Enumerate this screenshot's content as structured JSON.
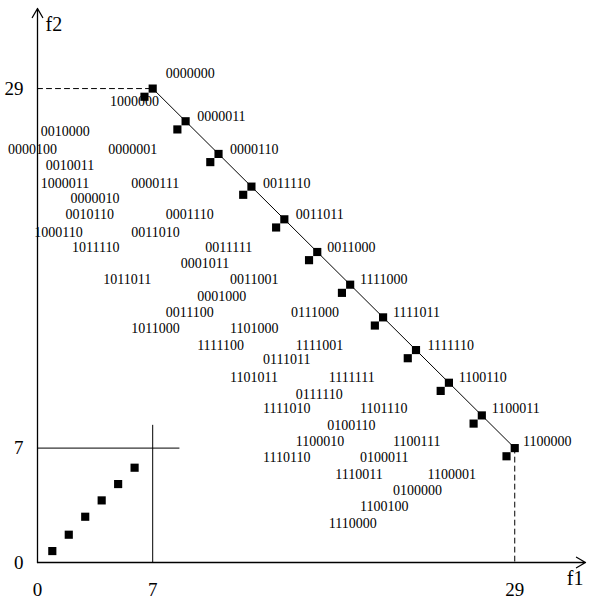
{
  "chart_data": {
    "type": "scatter",
    "x_label": "f1",
    "y_label": "f2",
    "xlim": [
      0,
      33.3
    ],
    "ylim": [
      0,
      33.9
    ],
    "xticks": [
      0,
      7,
      29
    ],
    "yticks": [
      0,
      7,
      29
    ],
    "series": [
      {
        "color": "#000000",
        "marker": "square",
        "x": [
          7,
          9,
          11,
          13,
          15,
          17,
          19,
          21,
          23,
          25,
          27,
          29
        ],
        "y": [
          29,
          27,
          25,
          23,
          21,
          19,
          17,
          15,
          13,
          11,
          9,
          7
        ]
      },
      {
        "color": "#000000",
        "marker": "square",
        "x": [
          6.5,
          8.5,
          10.5,
          12.5,
          14.5,
          16.5,
          18.5,
          20.5,
          22.5,
          24.5,
          26.5,
          28.5
        ],
        "y": [
          28.5,
          26.5,
          24.5,
          22.5,
          20.5,
          18.5,
          16.5,
          14.5,
          12.5,
          10.5,
          8.5,
          6.5
        ]
      },
      {
        "color": "#000000",
        "marker": "square",
        "x": [
          0.9,
          1.9,
          2.9,
          3.9,
          4.9,
          5.9
        ],
        "y": [
          0.7,
          1.7,
          2.8,
          3.8,
          4.8,
          5.8
        ]
      }
    ],
    "lines": [
      {
        "color": "#000000",
        "line_style": "solid",
        "x": [
          7,
          29
        ],
        "y": [
          29,
          7
        ]
      },
      {
        "color": "#000000",
        "line_style": "solid",
        "x": [
          0,
          8.6
        ],
        "y": [
          7,
          7
        ]
      },
      {
        "color": "#000000",
        "line_style": "solid",
        "x": [
          7,
          7
        ],
        "y": [
          0,
          8.4
        ]
      },
      {
        "color": "#000000",
        "line_style": "dashed",
        "x": [
          0,
          7
        ],
        "y": [
          29,
          29
        ]
      },
      {
        "color": "#000000",
        "line_style": "dashed",
        "x": [
          29,
          29
        ],
        "y": [
          7,
          0
        ]
      }
    ],
    "annotations": [
      {
        "text": "0000000",
        "x": 7.8,
        "y": 29.9
      },
      {
        "text": "1000000",
        "x": 4.4,
        "y": 28.2
      },
      {
        "text": "0000011",
        "x": 9.7,
        "y": 27.3
      },
      {
        "text": "0010000",
        "x": 0.2,
        "y": 26.4
      },
      {
        "text": "0000100",
        "x": -1.8,
        "y": 25.3
      },
      {
        "text": "0000001",
        "x": 4.3,
        "y": 25.3
      },
      {
        "text": "0000110",
        "x": 11.7,
        "y": 25.3
      },
      {
        "text": "0010011",
        "x": 0.5,
        "y": 24.3
      },
      {
        "text": "1000011",
        "x": 0.2,
        "y": 23.2
      },
      {
        "text": "0000111",
        "x": 5.7,
        "y": 23.2
      },
      {
        "text": "0011110",
        "x": 13.7,
        "y": 23.2
      },
      {
        "text": "0000010",
        "x": 2.0,
        "y": 22.3
      },
      {
        "text": "0010110",
        "x": 1.7,
        "y": 21.3
      },
      {
        "text": "0001110",
        "x": 7.8,
        "y": 21.3
      },
      {
        "text": "0011011",
        "x": 15.7,
        "y": 21.3
      },
      {
        "text": "1000110",
        "x": -0.2,
        "y": 20.2
      },
      {
        "text": "0011010",
        "x": 5.7,
        "y": 20.2
      },
      {
        "text": "1011110",
        "x": 2.1,
        "y": 19.3
      },
      {
        "text": "0011111",
        "x": 10.2,
        "y": 19.3
      },
      {
        "text": "0011000",
        "x": 17.6,
        "y": 19.3
      },
      {
        "text": "0001011",
        "x": 8.7,
        "y": 18.3
      },
      {
        "text": "1011011",
        "x": 4.0,
        "y": 17.3
      },
      {
        "text": "0011001",
        "x": 11.7,
        "y": 17.3
      },
      {
        "text": "1111000",
        "x": 19.6,
        "y": 17.3
      },
      {
        "text": "0001000",
        "x": 9.7,
        "y": 16.3
      },
      {
        "text": "0011100",
        "x": 7.8,
        "y": 15.3
      },
      {
        "text": "0111000",
        "x": 15.4,
        "y": 15.3
      },
      {
        "text": "1111011",
        "x": 21.6,
        "y": 15.3
      },
      {
        "text": "1011000",
        "x": 5.7,
        "y": 14.3
      },
      {
        "text": "1101000",
        "x": 11.7,
        "y": 14.3
      },
      {
        "text": "1111100",
        "x": 9.7,
        "y": 13.3
      },
      {
        "text": "1111001",
        "x": 15.7,
        "y": 13.3
      },
      {
        "text": "1111110",
        "x": 23.7,
        "y": 13.3
      },
      {
        "text": "0111011",
        "x": 13.7,
        "y": 12.4
      },
      {
        "text": "1101011",
        "x": 11.7,
        "y": 11.3
      },
      {
        "text": "1111111",
        "x": 17.7,
        "y": 11.3
      },
      {
        "text": "1100110",
        "x": 25.6,
        "y": 11.3
      },
      {
        "text": "0111110",
        "x": 15.7,
        "y": 10.3
      },
      {
        "text": "1111010",
        "x": 13.7,
        "y": 9.4
      },
      {
        "text": "1101110",
        "x": 19.6,
        "y": 9.4
      },
      {
        "text": "1100011",
        "x": 27.6,
        "y": 9.4
      },
      {
        "text": "0100110",
        "x": 17.6,
        "y": 8.4
      },
      {
        "text": "1100010",
        "x": 15.7,
        "y": 7.4
      },
      {
        "text": "1100111",
        "x": 21.6,
        "y": 7.4
      },
      {
        "text": "1100000",
        "x": 29.5,
        "y": 7.4
      },
      {
        "text": "1110110",
        "x": 13.7,
        "y": 6.4
      },
      {
        "text": "0100011",
        "x": 19.6,
        "y": 6.4
      },
      {
        "text": "1110011",
        "x": 18.1,
        "y": 5.4
      },
      {
        "text": "1100001",
        "x": 23.7,
        "y": 5.4
      },
      {
        "text": "0100000",
        "x": 21.6,
        "y": 4.4
      },
      {
        "text": "1100100",
        "x": 19.6,
        "y": 3.4
      },
      {
        "text": "1110000",
        "x": 17.7,
        "y": 2.4
      }
    ]
  }
}
